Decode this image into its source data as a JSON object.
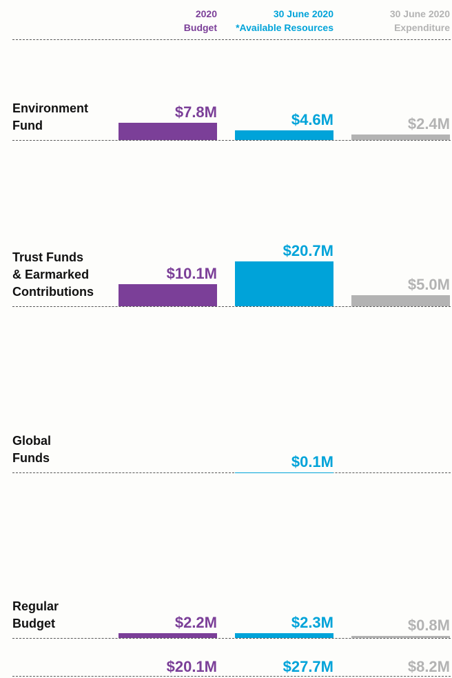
{
  "chart_data": {
    "type": "bar",
    "categories": [
      "Environment\nFund",
      "Trust Funds\n& Earmarked\nContributions",
      "Global\nFunds",
      "Regular\nBudget"
    ],
    "series": [
      {
        "name": "2020\nBudget",
        "color": "#7b3f98",
        "values": [
          7.8,
          10.1,
          null,
          2.2
        ],
        "value_labels": [
          "$7.8M",
          "$10.1M",
          null,
          "$2.2M"
        ],
        "total": 20.1,
        "total_label": "$20.1M"
      },
      {
        "name": "30 June 2020\n*Available Resources",
        "color": "#00a3d9",
        "values": [
          4.6,
          20.7,
          0.1,
          2.3
        ],
        "value_labels": [
          "$4.6M",
          "$20.7M",
          "$0.1M",
          "$2.3M"
        ],
        "total": 27.7,
        "total_label": "$27.7M"
      },
      {
        "name": "30 June 2020\nExpenditure",
        "color": "#b3b3b3",
        "values": [
          2.4,
          5.0,
          null,
          0.8
        ],
        "value_labels": [
          "$2.4M",
          "$5.0M",
          null,
          "$0.8M"
        ],
        "total": 8.2,
        "total_label": "$8.2M"
      }
    ]
  }
}
